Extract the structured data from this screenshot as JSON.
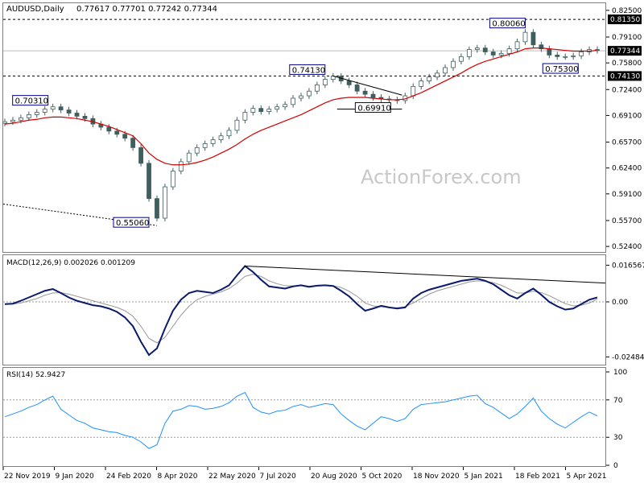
{
  "header": {
    "symbol": "AUDUSD,Daily",
    "ohlc": "0.77617 0.77701 0.77242 0.77344"
  },
  "watermark": "ActionForex.com",
  "chart_data": [
    {
      "type": "line",
      "name": "price",
      "title": "AUDUSD,Daily  0.77617 0.77701 0.77242 0.77344",
      "ylim": [
        0.52,
        0.83
      ],
      "yticks": [
        "0.82500",
        "0.79100",
        "0.75800",
        "0.72400",
        "0.69100",
        "0.65700",
        "0.62400",
        "0.59100",
        "0.55700",
        "0.52400"
      ],
      "xticks": [
        "22 Nov 2019",
        "9 Jan 2020",
        "24 Feb 2020",
        "8 Apr 2020",
        "22 May 2020",
        "7 Jul 2020",
        "20 Aug 2020",
        "5 Oct 2020",
        "18 Nov 2020",
        "5 Jan 2021",
        "18 Feb 2021",
        "5 Apr 2021"
      ],
      "close": [
        0.683,
        0.685,
        0.688,
        0.692,
        0.695,
        0.699,
        0.702,
        0.698,
        0.694,
        0.69,
        0.687,
        0.68,
        0.676,
        0.671,
        0.667,
        0.662,
        0.65,
        0.63,
        0.585,
        0.56,
        0.6,
        0.62,
        0.632,
        0.643,
        0.65,
        0.655,
        0.66,
        0.665,
        0.672,
        0.685,
        0.695,
        0.7,
        0.696,
        0.699,
        0.702,
        0.705,
        0.713,
        0.716,
        0.722,
        0.73,
        0.737,
        0.741,
        0.735,
        0.73,
        0.722,
        0.718,
        0.714,
        0.712,
        0.711,
        0.71,
        0.716,
        0.728,
        0.735,
        0.74,
        0.745,
        0.752,
        0.76,
        0.766,
        0.775,
        0.777,
        0.772,
        0.768,
        0.77,
        0.776,
        0.785,
        0.797,
        0.781,
        0.776,
        0.768,
        0.766,
        0.766,
        0.767,
        0.772,
        0.775,
        0.774
      ],
      "ema": [
        0.68,
        0.681,
        0.683,
        0.685,
        0.686,
        0.688,
        0.689,
        0.689,
        0.688,
        0.687,
        0.685,
        0.683,
        0.68,
        0.677,
        0.673,
        0.669,
        0.665,
        0.655,
        0.643,
        0.635,
        0.63,
        0.628,
        0.628,
        0.629,
        0.631,
        0.634,
        0.638,
        0.643,
        0.648,
        0.654,
        0.661,
        0.667,
        0.672,
        0.676,
        0.68,
        0.684,
        0.688,
        0.692,
        0.697,
        0.702,
        0.707,
        0.711,
        0.713,
        0.714,
        0.714,
        0.714,
        0.713,
        0.712,
        0.711,
        0.711,
        0.712,
        0.716,
        0.72,
        0.725,
        0.73,
        0.735,
        0.74,
        0.745,
        0.751,
        0.756,
        0.76,
        0.763,
        0.766,
        0.769,
        0.772,
        0.776,
        0.777,
        0.777,
        0.776,
        0.775,
        0.774,
        0.773,
        0.773,
        0.773,
        0.774
      ],
      "annotations": [
        {
          "label": "0.81350",
          "value": 0.8135,
          "style": "dashed"
        },
        {
          "label": "0.74130",
          "value": 0.7413,
          "style": "dashed"
        },
        {
          "label": "0.77344",
          "value": 0.77344,
          "style": "current"
        }
      ],
      "labels": [
        "0.70310",
        "0.55060",
        "0.74130",
        "0.69910",
        "0.80060",
        "0.75300"
      ]
    },
    {
      "type": "line",
      "name": "macd",
      "title": "MACD(12,26,9) 0.002026 0.001209",
      "ylim": [
        -0.028,
        0.02
      ],
      "yticks": [
        "0.016567",
        "0.00",
        "-0.02484"
      ],
      "macd": [
        -0.001,
        -0.0008,
        0.0005,
        0.002,
        0.0035,
        0.005,
        0.0058,
        0.004,
        0.002,
        0.0005,
        -0.0005,
        -0.0015,
        -0.002,
        -0.003,
        -0.0045,
        -0.007,
        -0.011,
        -0.018,
        -0.024,
        -0.021,
        -0.012,
        -0.004,
        0.001,
        0.004,
        0.005,
        0.0045,
        0.004,
        0.0055,
        0.0075,
        0.012,
        0.0162,
        0.0135,
        0.01,
        0.007,
        0.0065,
        0.006,
        0.007,
        0.0075,
        0.0068,
        0.0073,
        0.0075,
        0.0072,
        0.005,
        0.0025,
        -0.001,
        -0.004,
        -0.003,
        -0.0018,
        -0.0025,
        -0.003,
        -0.0025,
        0.0015,
        0.004,
        0.0055,
        0.0065,
        0.0075,
        0.0085,
        0.0095,
        0.01,
        0.0105,
        0.0095,
        0.008,
        0.0055,
        0.003,
        0.0015,
        0.004,
        0.006,
        0.0032,
        0.0,
        -0.002,
        -0.0035,
        -0.003,
        -0.001,
        0.001,
        0.002
      ],
      "signal": [
        -0.0012,
        -0.001,
        -0.0005,
        0.0005,
        0.0015,
        0.003,
        0.004,
        0.0042,
        0.0035,
        0.0025,
        0.0015,
        0.0005,
        -0.0005,
        -0.0015,
        -0.0025,
        -0.004,
        -0.0065,
        -0.011,
        -0.0165,
        -0.0185,
        -0.016,
        -0.011,
        -0.006,
        -0.002,
        0.001,
        0.0025,
        0.0035,
        0.0045,
        0.006,
        0.0085,
        0.0115,
        0.0125,
        0.0115,
        0.0095,
        0.0082,
        0.0073,
        0.0072,
        0.0073,
        0.0071,
        0.0072,
        0.0073,
        0.0073,
        0.0065,
        0.0048,
        0.0025,
        -0.0005,
        -0.0018,
        -0.0022,
        -0.0025,
        -0.0027,
        -0.0022,
        -0.0005,
        0.0015,
        0.0035,
        0.005,
        0.006,
        0.007,
        0.008,
        0.009,
        0.0095,
        0.0093,
        0.0087,
        0.0075,
        0.0058,
        0.004,
        0.004,
        0.0048,
        0.0042,
        0.0028,
        0.001,
        -0.0008,
        -0.0018,
        -0.0015,
        -0.0005,
        0.0012
      ],
      "trendline": true
    },
    {
      "type": "line",
      "name": "rsi",
      "title": "RSI(14) 52.9427",
      "ylim": [
        0,
        100
      ],
      "yticks": [
        "100",
        "70",
        "30",
        "0"
      ],
      "levels": [
        70,
        30
      ],
      "values": [
        52,
        55,
        58,
        62,
        65,
        70,
        74,
        60,
        54,
        48,
        45,
        40,
        38,
        36,
        35,
        32,
        30,
        25,
        18,
        22,
        45,
        58,
        60,
        64,
        63,
        60,
        61,
        63,
        67,
        74,
        78,
        62,
        57,
        55,
        58,
        59,
        63,
        65,
        62,
        64,
        66,
        65,
        55,
        48,
        42,
        38,
        45,
        52,
        50,
        47,
        50,
        60,
        65,
        66,
        67,
        68,
        70,
        72,
        74,
        75,
        66,
        62,
        56,
        50,
        55,
        63,
        72,
        58,
        50,
        44,
        40,
        46,
        52,
        57,
        53
      ]
    }
  ]
}
